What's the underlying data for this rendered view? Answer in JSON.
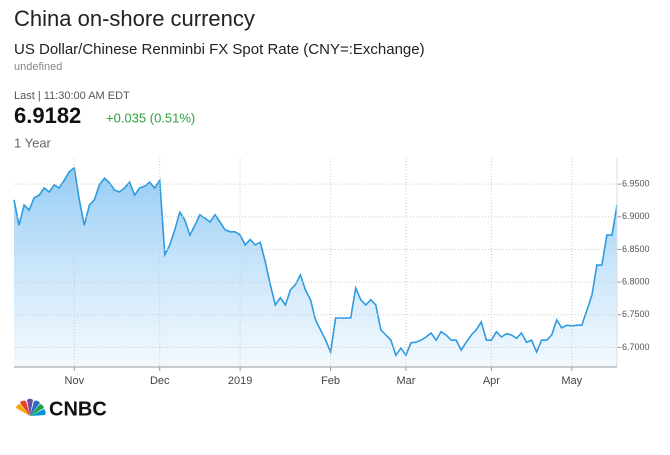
{
  "chart_data": {
    "type": "area",
    "title": "China on-shore currency",
    "subtitle": "US Dollar/Chinese Renminbi FX Spot Rate (CNY=:Exchange)",
    "note": "undefined",
    "last_time": "Last | 11:30:00 AM EDT",
    "last_price": "6.9182",
    "change": "+0.035 (0.51%)",
    "period": "1 Year",
    "source": "CNBC",
    "color": "#2e9be0",
    "change_color": "#2aa33c",
    "grid": true,
    "xlim": [
      0,
      120
    ],
    "xticks": [
      {
        "value": 12,
        "label": "Nov"
      },
      {
        "value": 29,
        "label": "Dec"
      },
      {
        "value": 45,
        "label": "2019"
      },
      {
        "value": 63,
        "label": "Feb"
      },
      {
        "value": 78,
        "label": "Mar"
      },
      {
        "value": 95,
        "label": "Apr"
      },
      {
        "value": 111,
        "label": "May"
      }
    ],
    "ylim": [
      6.67,
      6.99
    ],
    "yticks": [
      {
        "value": 6.7,
        "label": "6.7000"
      },
      {
        "value": 6.75,
        "label": "6.7500"
      },
      {
        "value": 6.8,
        "label": "6.8000"
      },
      {
        "value": 6.85,
        "label": "6.8500"
      },
      {
        "value": 6.9,
        "label": "6.9000"
      },
      {
        "value": 6.95,
        "label": "6.9500"
      }
    ],
    "values": [
      6.926,
      6.887,
      6.918,
      6.91,
      6.929,
      6.933,
      6.944,
      6.938,
      6.949,
      6.944,
      6.956,
      6.969,
      6.975,
      6.926,
      6.887,
      6.918,
      6.926,
      6.949,
      6.959,
      6.952,
      6.941,
      6.938,
      6.944,
      6.953,
      6.933,
      6.944,
      6.947,
      6.953,
      6.944,
      6.956,
      6.842,
      6.857,
      6.88,
      6.907,
      6.895,
      6.872,
      6.887,
      6.903,
      6.898,
      6.892,
      6.903,
      6.892,
      6.88,
      6.877,
      6.877,
      6.872,
      6.857,
      6.865,
      6.857,
      6.861,
      6.831,
      6.796,
      6.765,
      6.776,
      6.765,
      6.788,
      6.796,
      6.811,
      6.788,
      6.773,
      6.742,
      6.727,
      6.711,
      6.693,
      6.745,
      6.745,
      6.745,
      6.745,
      6.791,
      6.773,
      6.765,
      6.773,
      6.765,
      6.727,
      6.719,
      6.711,
      6.688,
      6.699,
      6.688,
      6.707,
      6.708,
      6.711,
      6.716,
      6.722,
      6.711,
      6.724,
      6.719,
      6.711,
      6.711,
      6.696,
      6.708,
      6.719,
      6.727,
      6.739,
      6.711,
      6.711,
      6.724,
      6.716,
      6.721,
      6.719,
      6.714,
      6.722,
      6.708,
      6.711,
      6.693,
      6.711,
      6.711,
      6.719,
      6.742,
      6.73,
      6.734,
      6.733,
      6.734,
      6.734,
      6.757,
      6.78,
      6.826,
      6.826,
      6.872,
      6.872,
      6.9182
    ]
  }
}
